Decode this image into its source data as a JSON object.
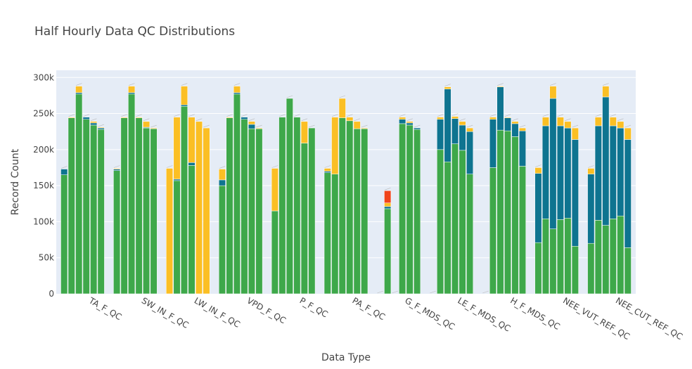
{
  "chart_data": {
    "type": "bar",
    "barmode": "stack",
    "title": "Half Hourly Data QC Distributions",
    "xlabel": "Data Type",
    "ylabel": "Record Count",
    "ylim": [
      0,
      310000
    ],
    "yticks": [
      0,
      50000,
      100000,
      150000,
      200000,
      250000,
      300000
    ],
    "ytick_labels": [
      "0",
      "50k",
      "100k",
      "150k",
      "200k",
      "250k",
      "300k"
    ],
    "grid": true,
    "colors": {
      "qc0": "#3ea84a",
      "qc1": "#0e7490",
      "qc2": "#fbbf24",
      "qc3": "#f0441b",
      "plot_bg": "#e5ecf6"
    },
    "categories": [
      "TA_F_QC",
      "SW_IN_F_QC",
      "LW_IN_F_QC",
      "VPD_F_QC",
      "P_F_QC",
      "PA_F_QC",
      "G_F_MDS_QC",
      "LE_F_MDS_QC",
      "H_F_MDS_QC",
      "NEE_VUT_REF_QC",
      "NEE_CUT_REF_QC"
    ],
    "groups": [
      {
        "category": "TA_F_QC",
        "bars": [
          [
            165000,
            8000,
            0,
            0
          ],
          [
            244000,
            0,
            1000,
            0
          ],
          [
            277000,
            2000,
            9000,
            0
          ],
          [
            242000,
            3000,
            0,
            0
          ],
          [
            234000,
            3000,
            2000,
            0
          ],
          [
            228000,
            2000,
            1000,
            0
          ]
        ]
      },
      {
        "category": "SW_IN_F_QC",
        "bars": [
          [
            171000,
            2000,
            1000,
            0
          ],
          [
            244000,
            0,
            1000,
            0
          ],
          [
            277000,
            2000,
            9000,
            0
          ],
          [
            244000,
            0,
            1000,
            0
          ],
          [
            230000,
            1000,
            8000,
            0
          ],
          [
            229000,
            0,
            1000,
            0
          ]
        ]
      },
      {
        "category": "LW_IN_F_QC",
        "bars": [
          [
            0,
            0,
            174000,
            0
          ],
          [
            157000,
            2000,
            86000,
            0
          ],
          [
            260000,
            2000,
            26000,
            0
          ],
          [
            178000,
            4000,
            63000,
            0
          ],
          [
            0,
            0,
            239000,
            0
          ],
          [
            0,
            0,
            230000,
            0
          ]
        ]
      },
      {
        "category": "VPD_F_QC",
        "bars": [
          [
            150000,
            8000,
            15000,
            0
          ],
          [
            244000,
            0,
            1000,
            0
          ],
          [
            277000,
            2000,
            9000,
            0
          ],
          [
            242000,
            3000,
            0,
            0
          ],
          [
            229000,
            6000,
            4000,
            0
          ],
          [
            229000,
            0,
            1000,
            0
          ]
        ]
      },
      {
        "category": "P_F_QC",
        "bars": [
          [
            115000,
            0,
            59000,
            0
          ],
          [
            245000,
            0,
            0,
            0
          ],
          [
            271000,
            0,
            0,
            0
          ],
          [
            245000,
            0,
            0,
            0
          ],
          [
            209000,
            0,
            30000,
            0
          ],
          [
            230000,
            0,
            0,
            0
          ]
        ]
      },
      {
        "category": "PA_F_QC",
        "bars": [
          [
            168000,
            2000,
            4000,
            0
          ],
          [
            166000,
            0,
            79000,
            0
          ],
          [
            244000,
            0,
            27000,
            0
          ],
          [
            240000,
            0,
            5000,
            0
          ],
          [
            229000,
            0,
            10000,
            0
          ],
          [
            229000,
            0,
            1000,
            0
          ]
        ]
      },
      {
        "category": "G_F_MDS_QC",
        "bars": [
          [
            0,
            0,
            0,
            0
          ],
          [
            118000,
            3000,
            5000,
            17000
          ],
          [
            0,
            0,
            0,
            0
          ],
          [
            236000,
            6000,
            3000,
            0
          ],
          [
            234000,
            3000,
            2000,
            0
          ],
          [
            228000,
            2000,
            0,
            0
          ]
        ]
      },
      {
        "category": "LE_F_MDS_QC",
        "bars": [
          [
            0,
            0,
            0,
            0
          ],
          [
            200000,
            42000,
            3000,
            0
          ],
          [
            183000,
            101000,
            3000,
            0
          ],
          [
            208000,
            35000,
            3000,
            0
          ],
          [
            199000,
            35000,
            5000,
            0
          ],
          [
            166000,
            59000,
            5000,
            0
          ]
        ]
      },
      {
        "category": "H_F_MDS_QC",
        "bars": [
          [
            0,
            0,
            0,
            0
          ],
          [
            175000,
            67000,
            3000,
            0
          ],
          [
            227000,
            60000,
            1000,
            0
          ],
          [
            226000,
            18000,
            1000,
            0
          ],
          [
            218000,
            18000,
            3000,
            0
          ],
          [
            177000,
            49000,
            4000,
            0
          ]
        ]
      },
      {
        "category": "NEE_VUT_REF_QC",
        "bars": [
          [
            71000,
            96000,
            8000,
            0
          ],
          [
            104000,
            129000,
            12000,
            0
          ],
          [
            90000,
            181000,
            17000,
            0
          ],
          [
            103000,
            130000,
            12000,
            0
          ],
          [
            105000,
            125000,
            9000,
            0
          ],
          [
            66000,
            148000,
            16000,
            0
          ]
        ]
      },
      {
        "category": "NEE_CUT_REF_QC",
        "bars": [
          [
            70000,
            96000,
            8000,
            0
          ],
          [
            102000,
            131000,
            12000,
            0
          ],
          [
            95000,
            178000,
            15000,
            0
          ],
          [
            104000,
            129000,
            12000,
            0
          ],
          [
            108000,
            122000,
            9000,
            0
          ],
          [
            64000,
            150000,
            16000,
            0
          ]
        ]
      }
    ]
  }
}
